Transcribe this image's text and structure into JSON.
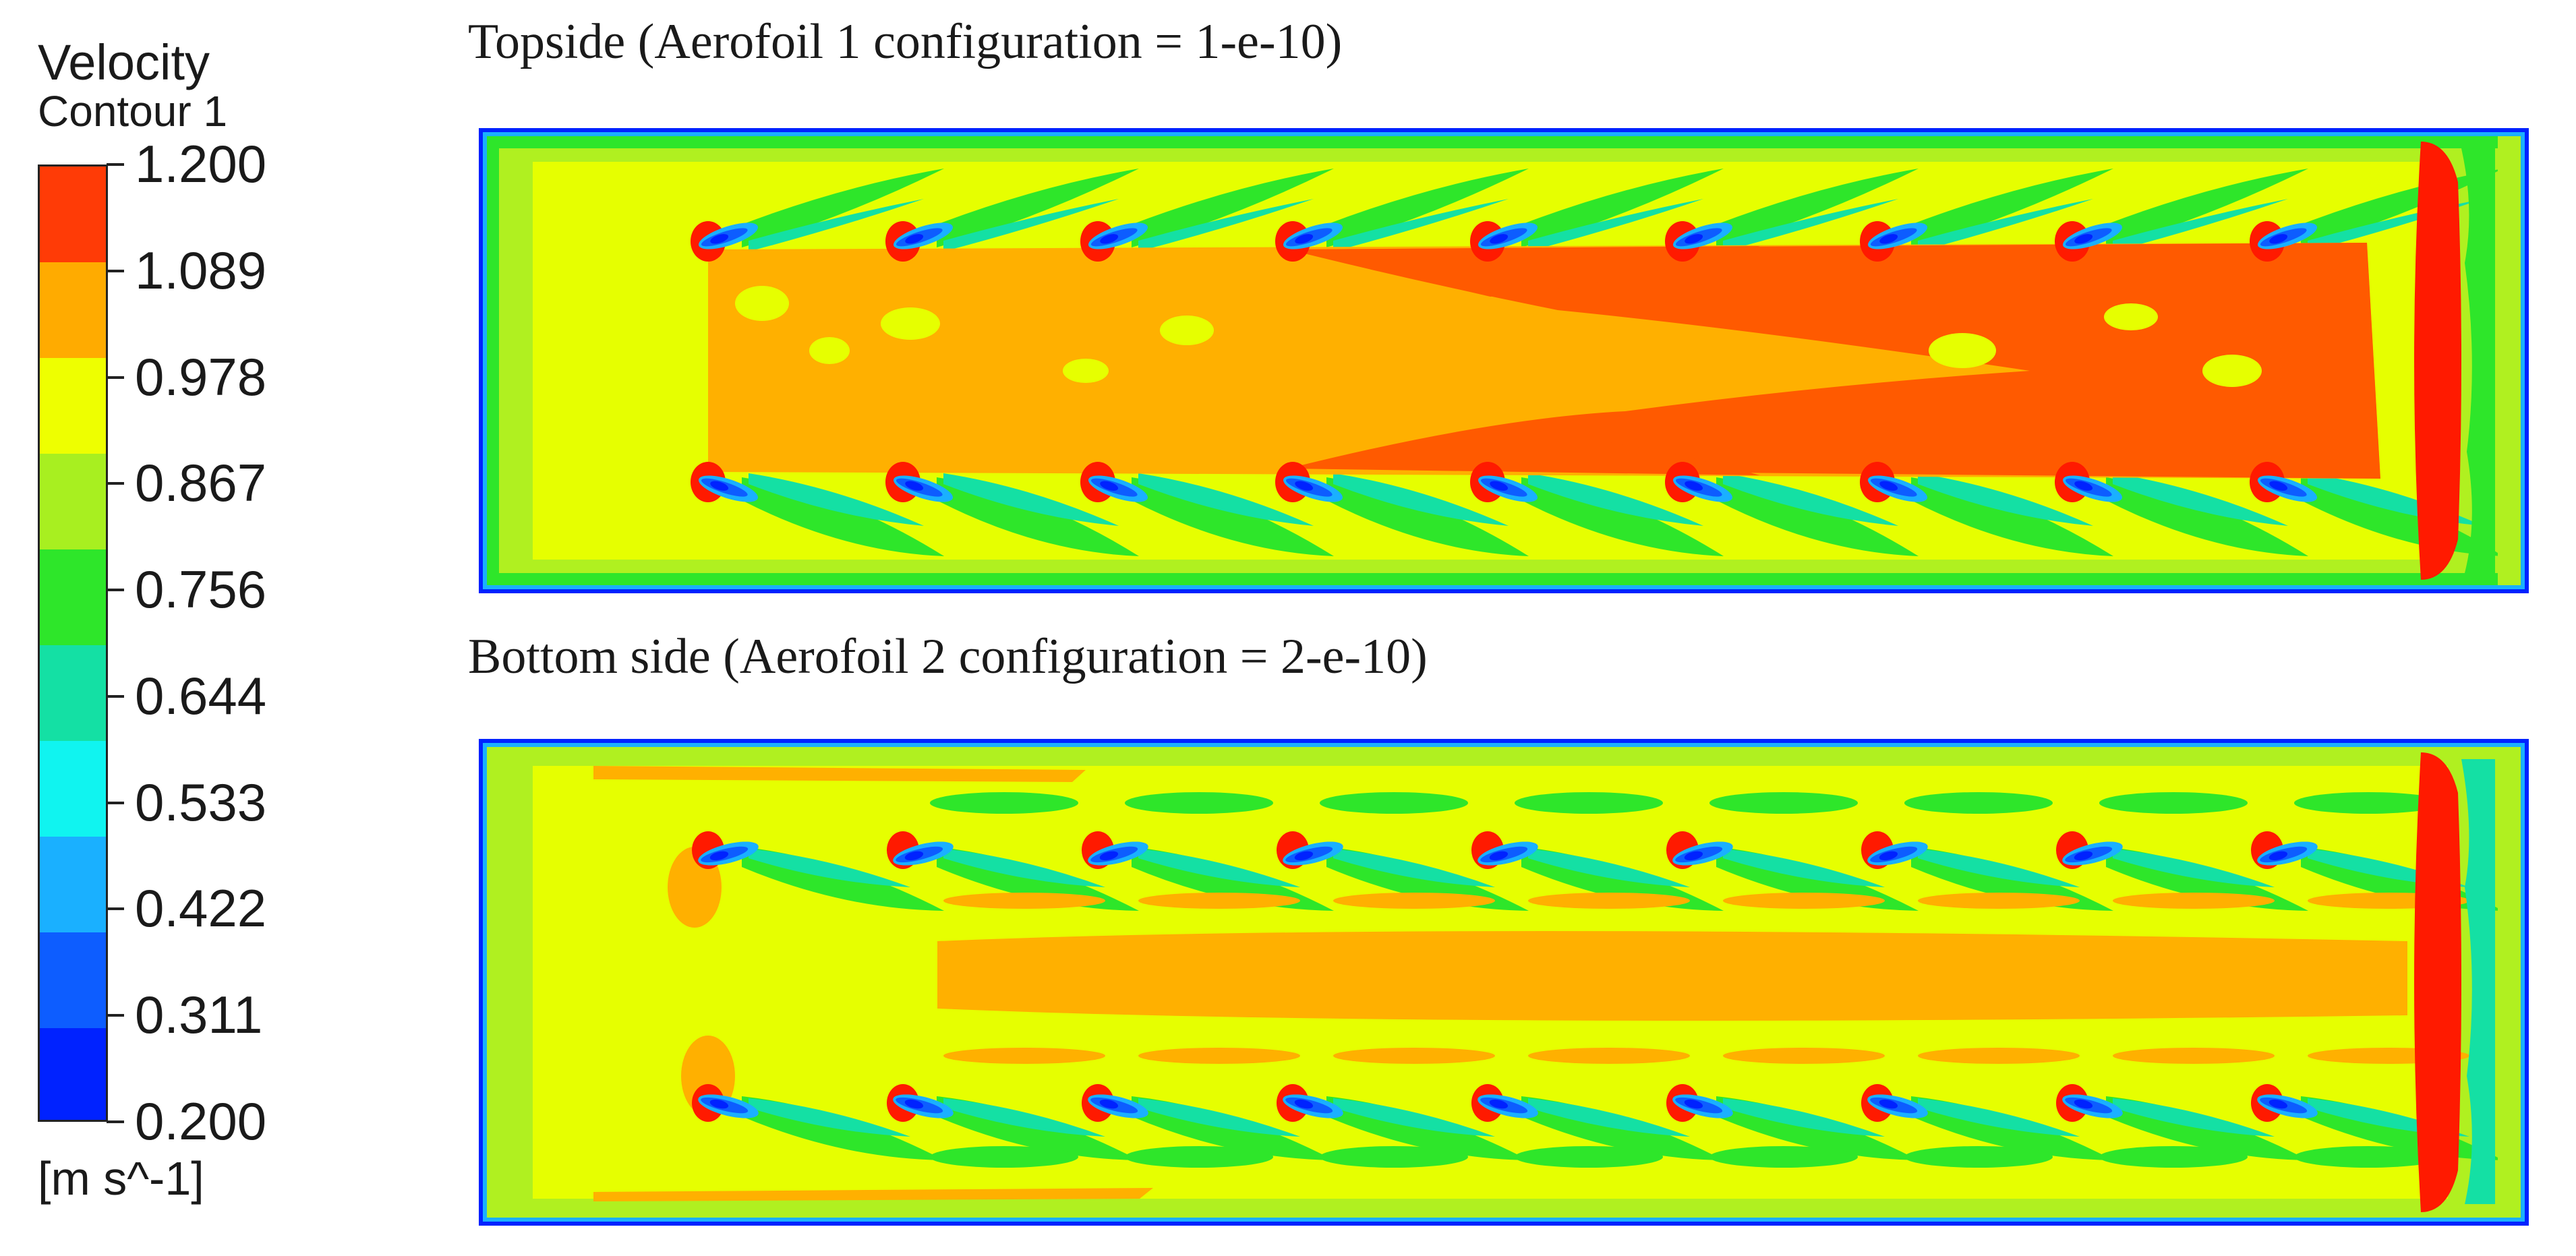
{
  "legend": {
    "title_line1": "Velocity",
    "title_line2": "Contour 1",
    "unit": "[m s^-1]",
    "ticks": [
      "1.200",
      "1.089",
      "0.978",
      "0.867",
      "0.756",
      "0.644",
      "0.533",
      "0.422",
      "0.311",
      "0.200"
    ],
    "band_colors": [
      "#ff3b06",
      "#ffab00",
      "#eeff00",
      "#a8ef20",
      "#2ee62a",
      "#14e0a4",
      "#10f4f0",
      "#1ab0ff",
      "#0d5dff",
      "#0022ff"
    ]
  },
  "panels": [
    {
      "title": "Topside (Aerofoil 1 configuration = 1-e-10)"
    },
    {
      "title": "Bottom side (Aerofoil 2 configuration = 2-e-10)"
    }
  ],
  "colors": {
    "red": "#ff1a00",
    "orange_red": "#ff5a00",
    "orange": "#ffb000",
    "yellow": "#e6ff00",
    "yellow_green": "#b0f020",
    "green": "#2ee62a",
    "teal": "#14e0a4",
    "cyan": "#10f4f0",
    "light_blue": "#1ab0ff",
    "blue": "#0d5dff",
    "dark_blue": "#0022ff"
  }
}
